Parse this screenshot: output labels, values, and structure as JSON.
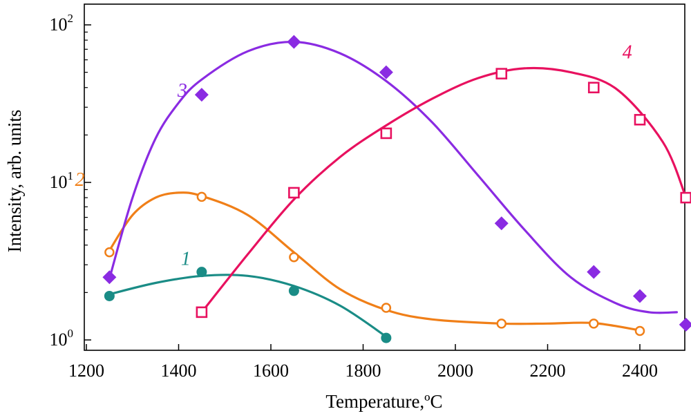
{
  "chart_data": {
    "type": "scatter",
    "xlabel": "Temperature,ºC",
    "ylabel": "Intensity, arb. units",
    "xlim": [
      1200,
      2500
    ],
    "ylim": [
      1,
      100
    ],
    "yscale": "log",
    "x_ticks": [
      "1200",
      "1400",
      "1600",
      "1800",
      "2000",
      "2200",
      "2400"
    ],
    "y_ticks": [
      {
        "base": "10",
        "exponent": "0",
        "value": 1
      },
      {
        "base": "10",
        "exponent": "1",
        "value": 10
      },
      {
        "base": "10",
        "exponent": "2",
        "value": 100
      }
    ],
    "grid": false,
    "series": [
      {
        "name": "1",
        "color": "#1a8c86",
        "marker": "filled-circle",
        "points": [
          [
            1250,
            1.9
          ],
          [
            1450,
            2.7
          ],
          [
            1650,
            2.05
          ],
          [
            1850,
            1.03
          ]
        ],
        "fit": [
          [
            1250,
            1.95
          ],
          [
            1350,
            2.3
          ],
          [
            1450,
            2.55
          ],
          [
            1550,
            2.55
          ],
          [
            1650,
            2.2
          ],
          [
            1750,
            1.65
          ],
          [
            1850,
            1.05
          ]
        ]
      },
      {
        "name": "2",
        "color": "#f07f18",
        "marker": "open-circle",
        "points": [
          [
            1250,
            3.6
          ],
          [
            1450,
            8.1
          ],
          [
            1650,
            3.35
          ],
          [
            1850,
            1.6
          ],
          [
            2100,
            1.27
          ],
          [
            2300,
            1.27
          ],
          [
            2400,
            1.14
          ]
        ],
        "fit": [
          [
            1250,
            3.7
          ],
          [
            1300,
            6.2
          ],
          [
            1350,
            8.0
          ],
          [
            1400,
            8.6
          ],
          [
            1450,
            8.2
          ],
          [
            1550,
            6.2
          ],
          [
            1650,
            3.6
          ],
          [
            1750,
            2.1
          ],
          [
            1850,
            1.55
          ],
          [
            1950,
            1.35
          ],
          [
            2100,
            1.27
          ],
          [
            2200,
            1.27
          ],
          [
            2300,
            1.28
          ],
          [
            2400,
            1.15
          ]
        ]
      },
      {
        "name": "3",
        "color": "#8a2be2",
        "marker": "filled-diamond",
        "points": [
          [
            1250,
            2.5
          ],
          [
            1450,
            36
          ],
          [
            1650,
            78
          ],
          [
            1850,
            50
          ],
          [
            2100,
            5.5
          ],
          [
            2300,
            2.7
          ],
          [
            2400,
            1.9
          ],
          [
            2500,
            1.25
          ]
        ],
        "fit": [
          [
            1250,
            2.45
          ],
          [
            1300,
            8
          ],
          [
            1350,
            19
          ],
          [
            1400,
            32
          ],
          [
            1450,
            45
          ],
          [
            1550,
            68
          ],
          [
            1650,
            78
          ],
          [
            1750,
            66
          ],
          [
            1850,
            44
          ],
          [
            1950,
            24
          ],
          [
            2050,
            11
          ],
          [
            2150,
            5
          ],
          [
            2250,
            2.5
          ],
          [
            2350,
            1.7
          ],
          [
            2420,
            1.5
          ],
          [
            2480,
            1.5
          ]
        ]
      },
      {
        "name": "4",
        "color": "#e8115f",
        "marker": "open-square",
        "points": [
          [
            1450,
            1.5
          ],
          [
            1650,
            8.6
          ],
          [
            1850,
            20.5
          ],
          [
            2100,
            49
          ],
          [
            2300,
            40
          ],
          [
            2400,
            25
          ],
          [
            2500,
            8
          ]
        ],
        "fit": [
          [
            1450,
            1.5
          ],
          [
            1550,
            3.5
          ],
          [
            1650,
            7.8
          ],
          [
            1750,
            14.5
          ],
          [
            1850,
            23
          ],
          [
            1950,
            34
          ],
          [
            2050,
            46
          ],
          [
            2150,
            53
          ],
          [
            2250,
            50
          ],
          [
            2350,
            39
          ],
          [
            2450,
            18
          ],
          [
            2500,
            8
          ]
        ]
      }
    ]
  }
}
